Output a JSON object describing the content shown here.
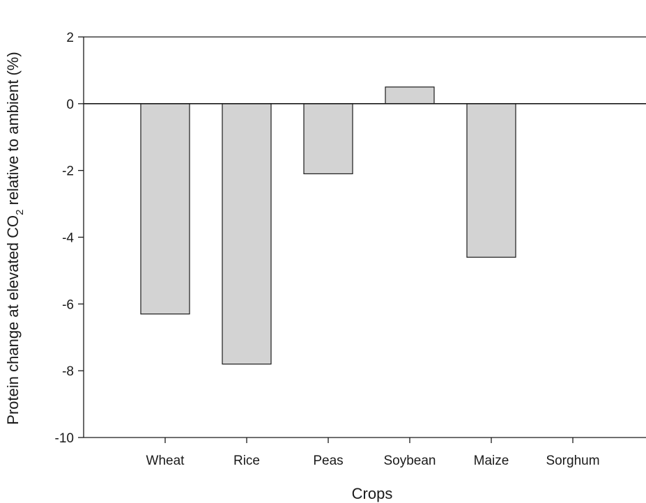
{
  "chart_data": {
    "type": "bar",
    "title": "",
    "xlabel": "Crops",
    "ylabel": {
      "prefix": "Protein change at elevated CO",
      "subscript": "2",
      "suffix": " relative to ambient (%)"
    },
    "categories": [
      "Wheat",
      "Rice",
      "Peas",
      "Soybean",
      "Maize",
      "Sorghum"
    ],
    "values": [
      -6.3,
      -7.8,
      -2.1,
      0.5,
      -4.6,
      0
    ],
    "ylim": [
      -10,
      2
    ],
    "yticks": [
      2,
      0,
      -2,
      -4,
      -6,
      -8,
      -10
    ],
    "ytick_labels": [
      "2",
      "0",
      "-2",
      "-4",
      "-6",
      "-8",
      "-10"
    ],
    "grid": false,
    "legend": "none",
    "colors": {
      "bar_fill": "#d3d3d3",
      "bar_edge": "#1a1a1a"
    }
  }
}
